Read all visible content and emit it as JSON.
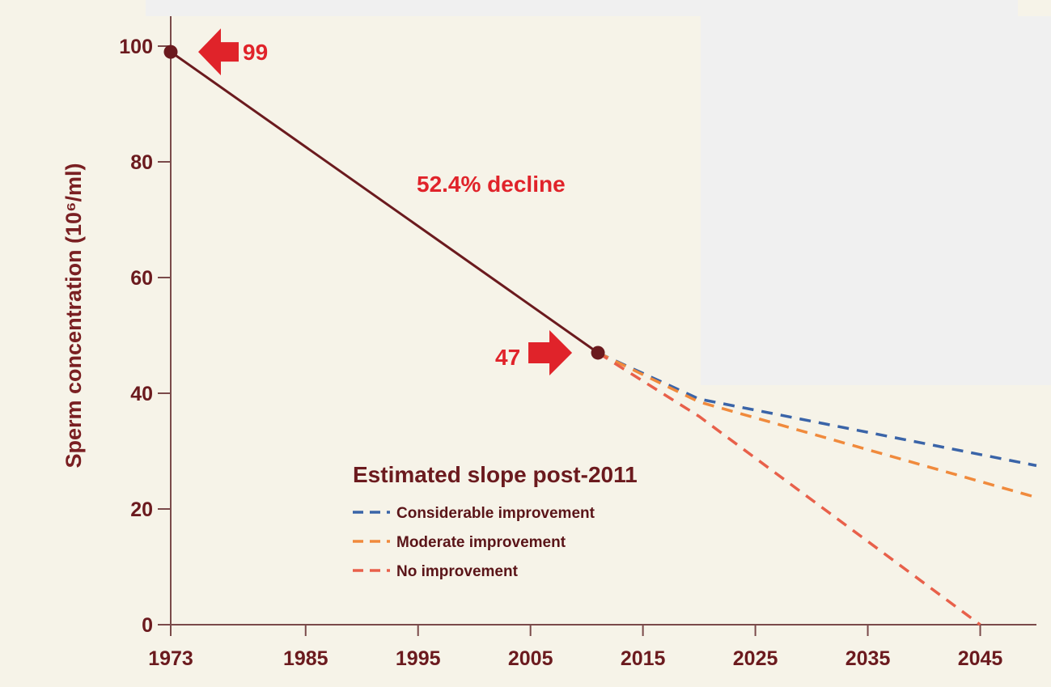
{
  "chart_data": {
    "type": "line",
    "ylabel": "Sperm concentration (10⁶/ml)",
    "xlabel": "",
    "x_ticks": [
      1973,
      1985,
      1995,
      2005,
      2015,
      2025,
      2035,
      2045
    ],
    "x_tick_labels": [
      "1973",
      "1985",
      "1995",
      "2005",
      "2015",
      "2025",
      "2035",
      "2045"
    ],
    "y_ticks": [
      0,
      20,
      40,
      60,
      80,
      100
    ],
    "y_tick_labels": [
      "0",
      "20",
      "40",
      "60",
      "80",
      "100"
    ],
    "xlim": [
      1973,
      2050
    ],
    "ylim": [
      0,
      100
    ],
    "grid": false,
    "observed": {
      "x": [
        1973,
        2011
      ],
      "y": [
        99,
        47
      ]
    },
    "projections": {
      "title": "Estimated slope post-2011",
      "series": [
        {
          "name": "Considerable improvement",
          "color": "#3a64a8",
          "x": [
            2011,
            2020,
            2050
          ],
          "y": [
            47,
            39,
            27.5
          ]
        },
        {
          "name": "Moderate improvement",
          "color": "#f08a3c",
          "x": [
            2011,
            2020,
            2050
          ],
          "y": [
            47,
            38.5,
            22
          ]
        },
        {
          "name": "No improvement",
          "color": "#e8604a",
          "x": [
            2011,
            2020,
            2045
          ],
          "y": [
            47,
            36,
            0
          ]
        }
      ]
    },
    "annotations": {
      "start_value": "99",
      "end_value": "47",
      "decline": "52.4% decline"
    },
    "legend_position": "bottom-center",
    "colors": {
      "observed_line": "#6b1a1e",
      "axis": "#7a4a4a",
      "arrow": "#e0232a"
    }
  }
}
